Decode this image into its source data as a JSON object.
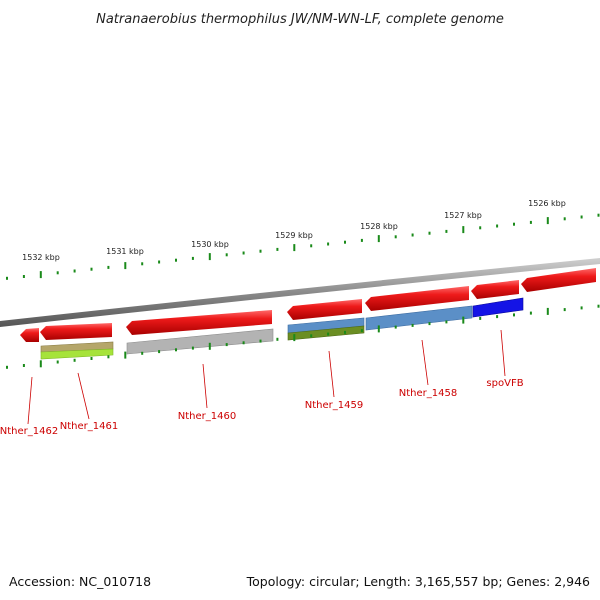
{
  "title": "Natranaerobius thermophilus JW/NM-WN-LF, complete genome",
  "scale_labels": [
    "1532 kbp",
    "1531 kbp",
    "1530 kbp",
    "1529 kbp",
    "1528 kbp",
    "1527 kbp",
    "1526 kbp"
  ],
  "genes": [
    "Nther_1462",
    "Nther_1461",
    "Nther_1460",
    "Nther_1459",
    "Nther_1458",
    "spoVFB"
  ],
  "footer": {
    "accession": "Accession: NC_010718",
    "topology": "Topology: circular; Length: 3,165,557 bp; Genes: 2,946"
  },
  "colors": {
    "gene_arrow": "#e8141c",
    "backbone": "#8a8a8a",
    "tick": "#1a8a1a",
    "label": "#cc0000",
    "cog_olive": "#b5a66a",
    "cog_lime": "#a6e33a",
    "cog_gray": "#b3b3b3",
    "cog_steel": "#5b8fc7",
    "cog_green": "#6b8e23",
    "cog_blue": "#1414e6"
  }
}
